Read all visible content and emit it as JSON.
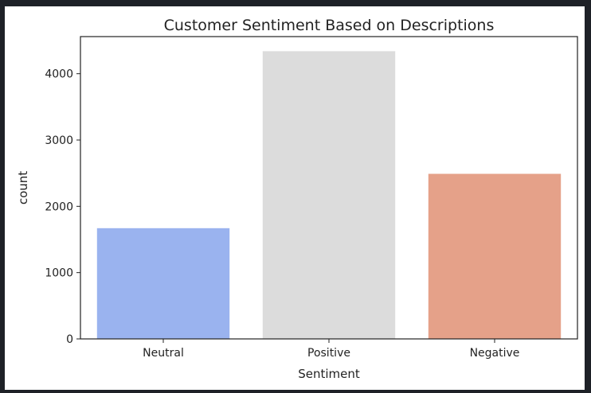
{
  "chart_data": {
    "type": "bar",
    "title": "Customer Sentiment Based on Descriptions",
    "xlabel": "Sentiment",
    "ylabel": "count",
    "categories": [
      "Neutral",
      "Positive",
      "Negative"
    ],
    "values": [
      1670,
      4340,
      2490
    ],
    "colors": [
      "#9ab3ef",
      "#dcdcdc",
      "#e5a189"
    ],
    "yticks": [
      0,
      1000,
      2000,
      3000,
      4000
    ],
    "ylim": [
      0,
      4560
    ],
    "grid": false,
    "legend": "none"
  }
}
